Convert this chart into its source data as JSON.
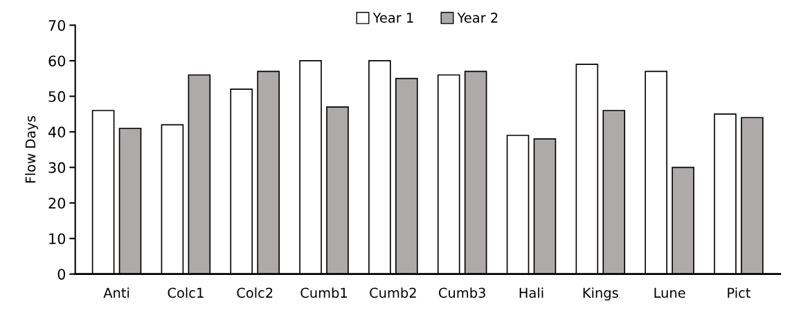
{
  "chart_data": {
    "type": "bar",
    "ylabel": "Flow Days",
    "categories": [
      "Anti",
      "Colc1",
      "Colc2",
      "Cumb1",
      "Cumb2",
      "Cumb3",
      "Hali",
      "Kings",
      "Lune",
      "Pict"
    ],
    "series": [
      {
        "name": "Year 1",
        "color": "#ffffff",
        "values": [
          46,
          42,
          52,
          60,
          60,
          56,
          39,
          59,
          57,
          45
        ]
      },
      {
        "name": "Year 2",
        "color": "#aeaaaa",
        "values": [
          41,
          56,
          57,
          47,
          55,
          57,
          38,
          46,
          30,
          44
        ]
      }
    ],
    "ylim": [
      0,
      70
    ],
    "yticks": [
      0,
      10,
      20,
      30,
      40,
      50,
      60,
      70
    ],
    "grid": false,
    "legend": "top"
  }
}
